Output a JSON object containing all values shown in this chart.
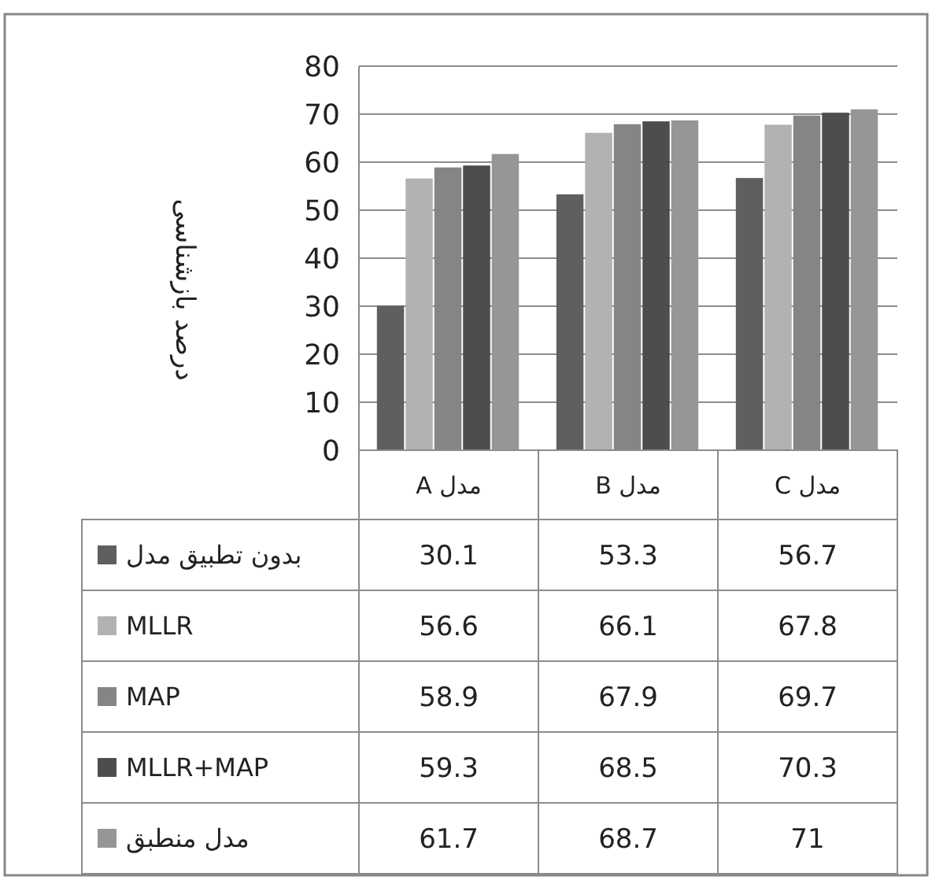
{
  "chart_data": {
    "type": "bar",
    "ylabel": "درصد بازشناسی",
    "categories": [
      "مدل A",
      "مدل B",
      "مدل C"
    ],
    "series": [
      {
        "name": "بدون تطبیق مدل",
        "color": "#5f5f5f",
        "values": [
          30.1,
          53.3,
          56.7
        ]
      },
      {
        "name": "MLLR",
        "color": "#b2b2b2",
        "values": [
          56.6,
          66.1,
          67.8
        ]
      },
      {
        "name": "MAP",
        "color": "#858585",
        "values": [
          58.9,
          67.9,
          69.7
        ]
      },
      {
        "name": "MLLR+MAP",
        "color": "#4d4d4d",
        "values": [
          59.3,
          68.5,
          70.3
        ]
      },
      {
        "name": "مدل منطبق",
        "color": "#969696",
        "values": [
          61.7,
          68.7,
          71
        ]
      }
    ],
    "ylim": [
      0,
      80
    ],
    "yticks": [
      0,
      10,
      20,
      30,
      40,
      50,
      60,
      70,
      80
    ],
    "grid": "y",
    "data_labels": true,
    "legend": "bottom"
  }
}
